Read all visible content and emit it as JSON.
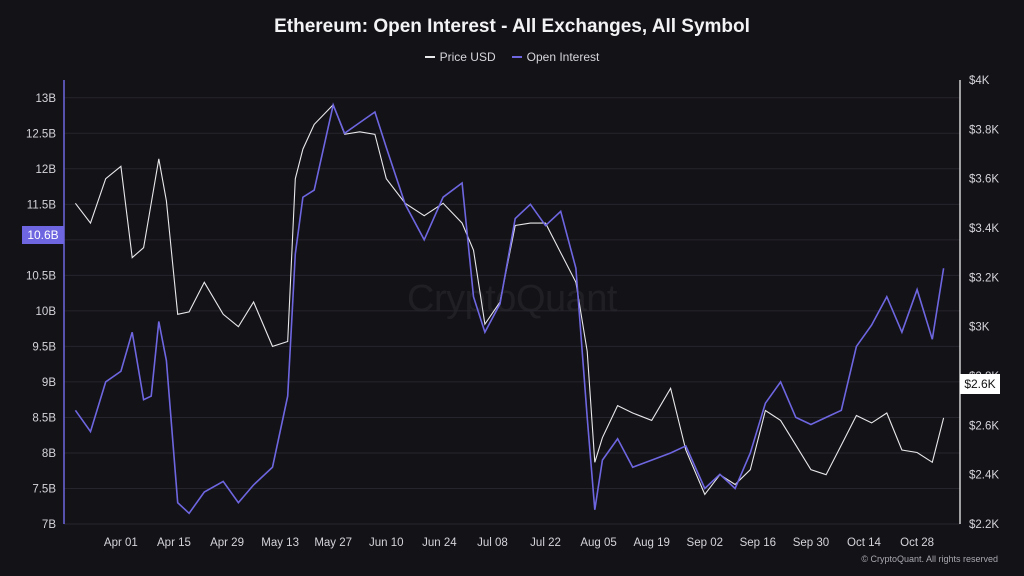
{
  "page": {
    "title": "Ethereum: Open Interest - All Exchanges, All Symbol",
    "watermark": "CryptoQuant",
    "copyright": "© CryptoQuant. All rights reserved"
  },
  "colors": {
    "background": "#131217",
    "price": "#e8e8ea",
    "open_interest": "#6e66e0"
  },
  "chart_data": {
    "type": "line",
    "title": "Ethereum: Open Interest - All Exchanges, All Symbol",
    "legend_placement": "top-center",
    "grid": "horizontal",
    "x_ticks": [
      "Apr 01",
      "Apr 15",
      "Apr 29",
      "May 13",
      "May 27",
      "Jun 10",
      "Jun 24",
      "Jul 08",
      "Jul 22",
      "Aug 05",
      "Aug 19",
      "Sep 02",
      "Sep 16",
      "Sep 30",
      "Oct 14",
      "Oct 28"
    ],
    "y_left": {
      "label": "",
      "min": 7,
      "max": 13.25,
      "ticks": [
        7,
        7.5,
        8,
        8.5,
        9,
        9.5,
        10,
        10.5,
        11,
        11.5,
        12,
        12.5,
        13
      ],
      "tick_labels": [
        "7B",
        "7.5B",
        "8B",
        "8.5B",
        "9B",
        "9.5B",
        "10B",
        "10.5B",
        "11B",
        "11.5B",
        "12B",
        "12.5B",
        "13B"
      ]
    },
    "y_right": {
      "label": "",
      "min": 2200,
      "max": 4000,
      "ticks": [
        2200,
        2400,
        2600,
        2800,
        3000,
        3200,
        3400,
        3600,
        3800,
        4000
      ],
      "tick_labels": [
        "$2.2K",
        "$2.4K",
        "$2.6K",
        "$2.8K",
        "$3K",
        "$3.2K",
        "$3.4K",
        "$3.6K",
        "$3.8K",
        "$4K"
      ]
    },
    "last_value_labels": {
      "open_interest": "10.6B",
      "price": "$2.6K"
    },
    "series": [
      {
        "name": "Open Interest",
        "axis": "left",
        "color": "#6e66e0",
        "x": [
          "2024-03-20",
          "2024-03-24",
          "2024-03-28",
          "2024-04-01",
          "2024-04-04",
          "2024-04-07",
          "2024-04-09",
          "2024-04-11",
          "2024-04-13",
          "2024-04-16",
          "2024-04-19",
          "2024-04-23",
          "2024-04-28",
          "2024-05-02",
          "2024-05-06",
          "2024-05-11",
          "2024-05-15",
          "2024-05-17",
          "2024-05-19",
          "2024-05-22",
          "2024-05-27",
          "2024-05-30",
          "2024-06-03",
          "2024-06-07",
          "2024-06-10",
          "2024-06-15",
          "2024-06-20",
          "2024-06-25",
          "2024-06-30",
          "2024-07-03",
          "2024-07-06",
          "2024-07-10",
          "2024-07-14",
          "2024-07-18",
          "2024-07-22",
          "2024-07-26",
          "2024-07-30",
          "2024-08-02",
          "2024-08-04",
          "2024-08-06",
          "2024-08-10",
          "2024-08-14",
          "2024-08-19",
          "2024-08-24",
          "2024-08-28",
          "2024-09-02",
          "2024-09-06",
          "2024-09-10",
          "2024-09-14",
          "2024-09-18",
          "2024-09-22",
          "2024-09-26",
          "2024-09-30",
          "2024-10-04",
          "2024-10-08",
          "2024-10-12",
          "2024-10-16",
          "2024-10-20",
          "2024-10-24",
          "2024-10-28",
          "2024-11-01",
          "2024-11-04"
        ],
        "values": [
          8.6,
          8.3,
          9.0,
          9.15,
          9.7,
          8.75,
          8.8,
          9.85,
          9.3,
          7.3,
          7.15,
          7.45,
          7.6,
          7.3,
          7.55,
          7.8,
          8.8,
          10.8,
          11.6,
          11.7,
          12.9,
          12.5,
          12.65,
          12.8,
          12.3,
          11.5,
          11.0,
          11.6,
          11.8,
          10.2,
          9.7,
          10.1,
          11.3,
          11.5,
          11.2,
          11.4,
          10.6,
          8.5,
          7.2,
          7.9,
          8.2,
          7.8,
          7.9,
          8.0,
          8.1,
          7.5,
          7.7,
          7.5,
          8.0,
          8.7,
          9.0,
          8.5,
          8.4,
          8.5,
          8.6,
          9.5,
          9.8,
          10.2,
          9.7,
          10.3,
          9.6,
          10.6
        ]
      },
      {
        "name": "Price USD",
        "axis": "right",
        "color": "#e8e8ea",
        "x": [
          "2024-03-20",
          "2024-03-24",
          "2024-03-28",
          "2024-04-01",
          "2024-04-04",
          "2024-04-07",
          "2024-04-09",
          "2024-04-11",
          "2024-04-13",
          "2024-04-16",
          "2024-04-19",
          "2024-04-23",
          "2024-04-28",
          "2024-05-02",
          "2024-05-06",
          "2024-05-11",
          "2024-05-15",
          "2024-05-17",
          "2024-05-19",
          "2024-05-22",
          "2024-05-27",
          "2024-05-30",
          "2024-06-03",
          "2024-06-07",
          "2024-06-10",
          "2024-06-15",
          "2024-06-20",
          "2024-06-25",
          "2024-06-30",
          "2024-07-03",
          "2024-07-06",
          "2024-07-10",
          "2024-07-14",
          "2024-07-18",
          "2024-07-22",
          "2024-07-26",
          "2024-07-30",
          "2024-08-02",
          "2024-08-04",
          "2024-08-06",
          "2024-08-10",
          "2024-08-14",
          "2024-08-19",
          "2024-08-24",
          "2024-08-28",
          "2024-09-02",
          "2024-09-06",
          "2024-09-10",
          "2024-09-14",
          "2024-09-18",
          "2024-09-22",
          "2024-09-26",
          "2024-09-30",
          "2024-10-04",
          "2024-10-08",
          "2024-10-12",
          "2024-10-16",
          "2024-10-20",
          "2024-10-24",
          "2024-10-28",
          "2024-11-01",
          "2024-11-04"
        ],
        "values": [
          3500,
          3420,
          3600,
          3650,
          3280,
          3320,
          3500,
          3680,
          3510,
          3050,
          3060,
          3180,
          3050,
          3000,
          3100,
          2920,
          2940,
          3600,
          3720,
          3820,
          3900,
          3780,
          3790,
          3780,
          3600,
          3500,
          3450,
          3500,
          3420,
          3310,
          3010,
          3100,
          3410,
          3420,
          3420,
          3300,
          3180,
          2900,
          2450,
          2550,
          2680,
          2650,
          2620,
          2750,
          2500,
          2320,
          2400,
          2360,
          2420,
          2660,
          2620,
          2520,
          2420,
          2400,
          2520,
          2640,
          2610,
          2650,
          2500,
          2490,
          2450,
          2630
        ]
      }
    ]
  }
}
